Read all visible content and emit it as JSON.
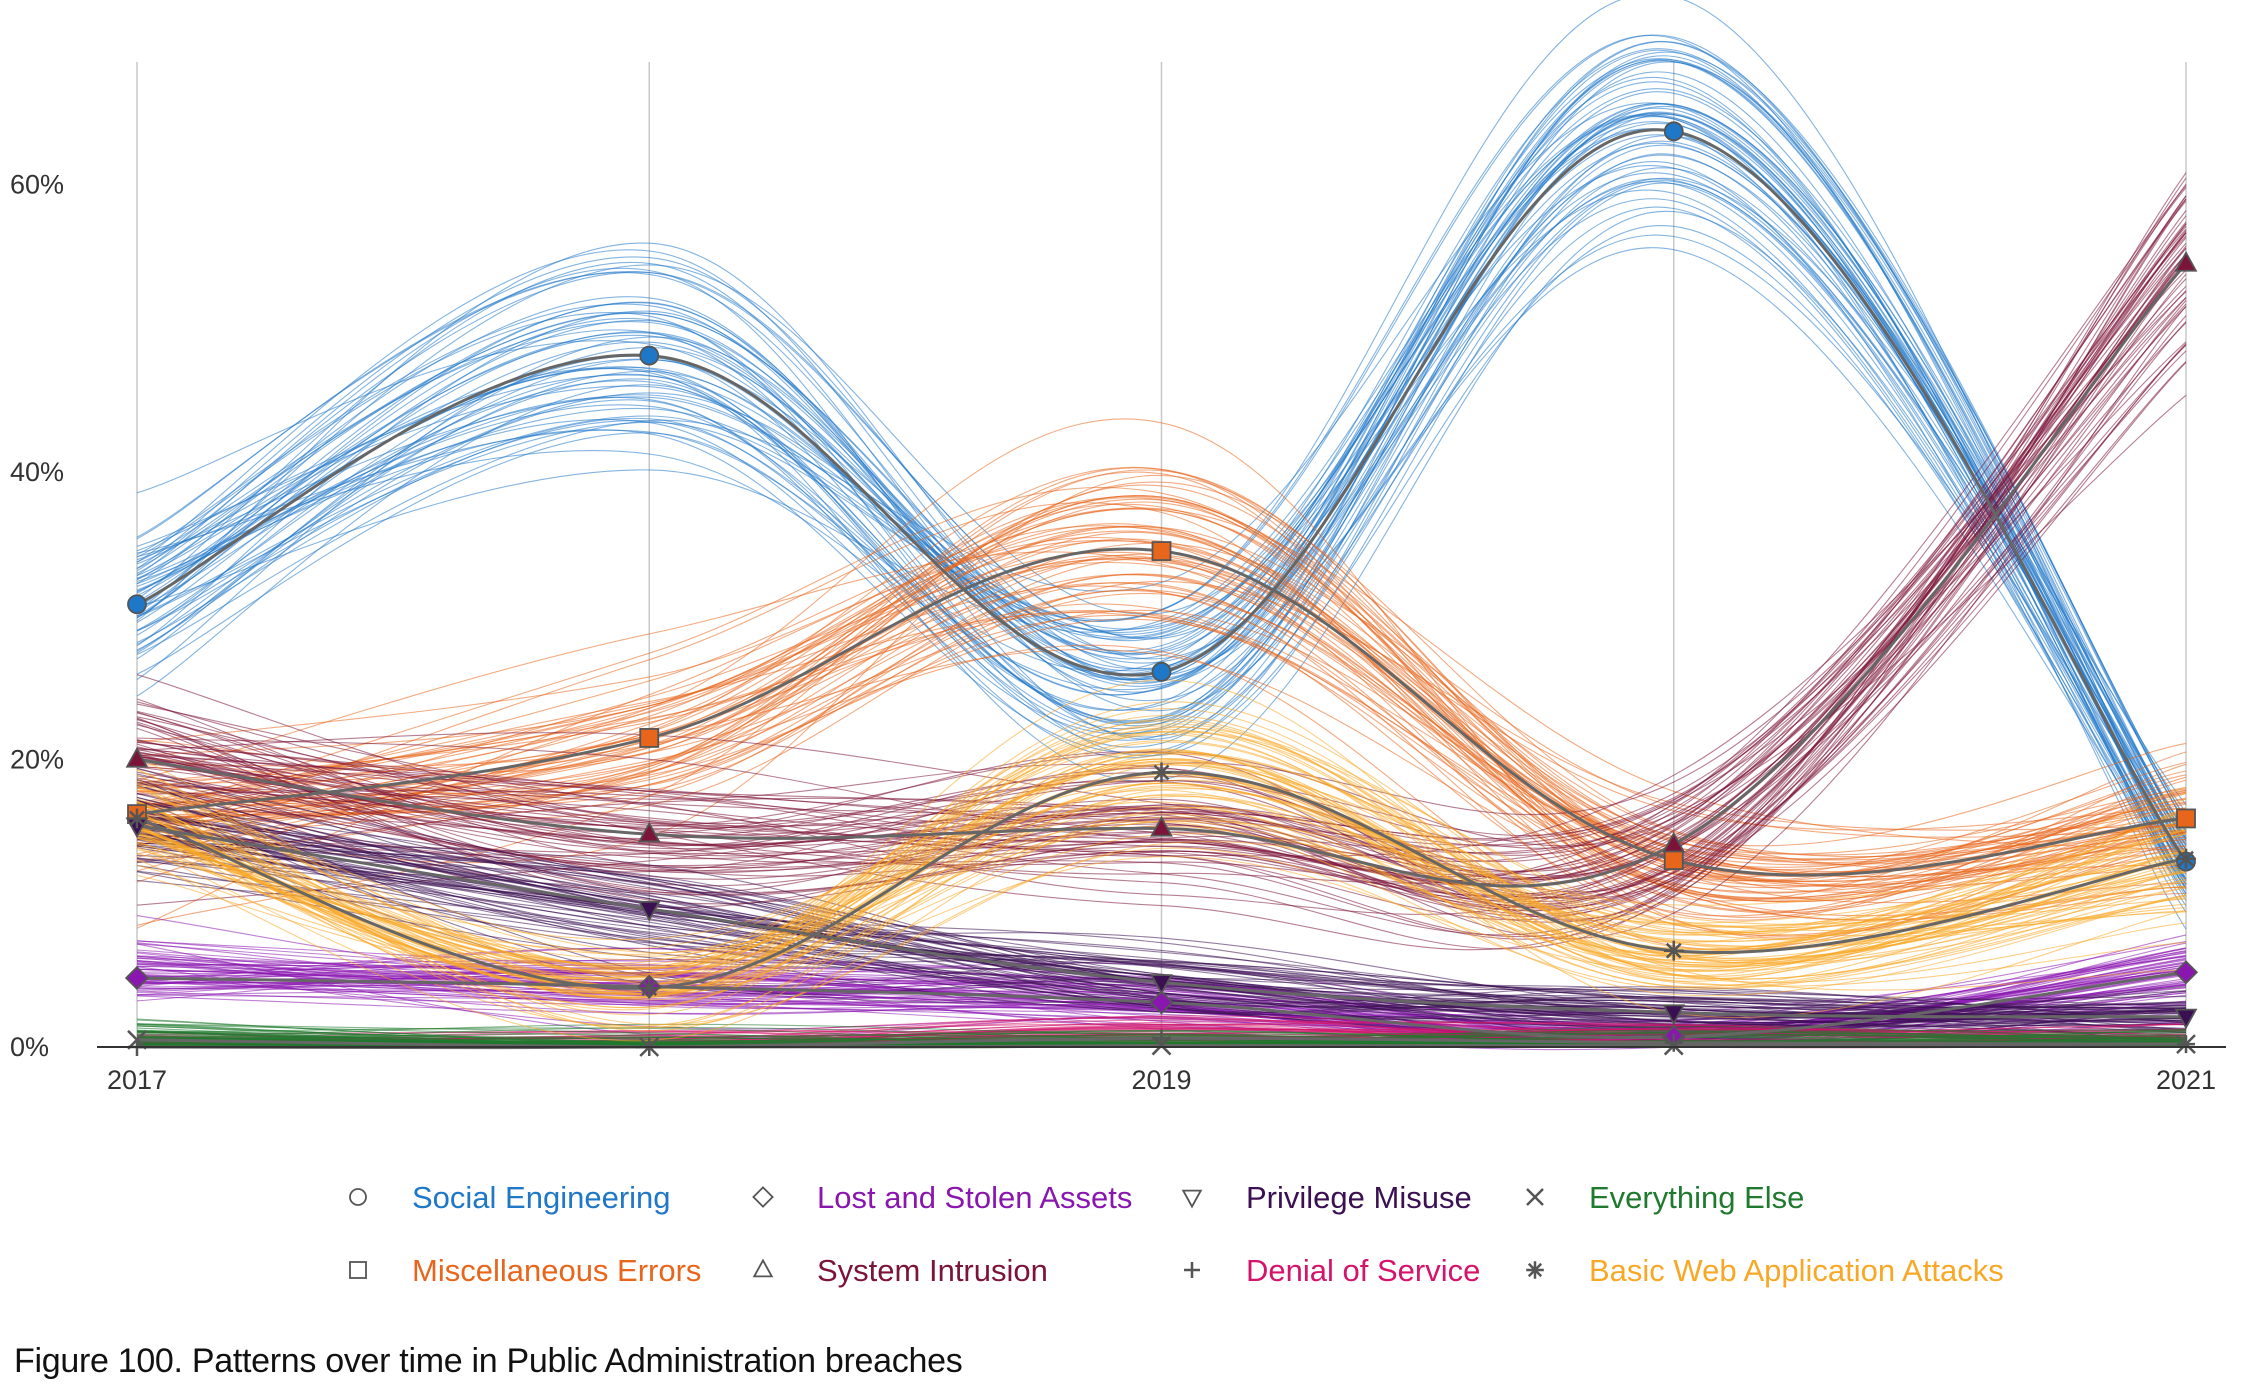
{
  "caption": "Figure 100. Patterns over time in Public Administration breaches",
  "chart_data": {
    "type": "line",
    "title": "",
    "xlabel": "",
    "ylabel": "",
    "x": [
      2017,
      2018,
      2019,
      2020,
      2021
    ],
    "x_tick_labels": [
      {
        "x": 2017,
        "label": "2017"
      },
      {
        "x": 2019,
        "label": "2019"
      },
      {
        "x": 2021,
        "label": "2021"
      }
    ],
    "y_ticks": [
      {
        "value": 0,
        "label": "0%"
      },
      {
        "value": 20,
        "label": "20%"
      },
      {
        "value": 40,
        "label": "40%"
      },
      {
        "value": 60,
        "label": "60%"
      }
    ],
    "ylim": [
      0,
      68
    ],
    "grid": "vertical",
    "legend_position": "bottom",
    "series": [
      {
        "name": "Social Engineering",
        "color": "#1f77c8",
        "marker": "circle",
        "values": [
          30.8,
          48.1,
          26.1,
          63.7,
          12.9
        ]
      },
      {
        "name": "Miscellaneous Errors",
        "color": "#e8661c",
        "marker": "square",
        "values": [
          16.2,
          21.5,
          34.5,
          13.0,
          15.9
        ]
      },
      {
        "name": "Lost and Stolen Assets",
        "color": "#8a16b0",
        "marker": "diamond",
        "values": [
          4.8,
          4.2,
          3.1,
          0.7,
          5.2
        ]
      },
      {
        "name": "System Intrusion",
        "color": "#7b1438",
        "marker": "triangle-up",
        "values": [
          20.0,
          14.8,
          15.2,
          14.1,
          54.5
        ]
      },
      {
        "name": "Privilege Misuse",
        "color": "#3b1052",
        "marker": "triangle-down",
        "values": [
          15.4,
          9.6,
          4.5,
          2.4,
          2.1
        ]
      },
      {
        "name": "Denial of Service",
        "color": "#d4146a",
        "marker": "plus",
        "values": [
          0.0,
          0.0,
          0.6,
          0.3,
          0.2
        ]
      },
      {
        "name": "Everything Else",
        "color": "#1f7a2e",
        "marker": "x",
        "values": [
          0.5,
          0.0,
          0.1,
          0.1,
          0.2
        ]
      },
      {
        "name": "Basic Web Application Attacks",
        "color": "#f9a825",
        "marker": "asterisk",
        "values": [
          15.9,
          4.1,
          19.1,
          6.7,
          13.1
        ]
      }
    ]
  }
}
